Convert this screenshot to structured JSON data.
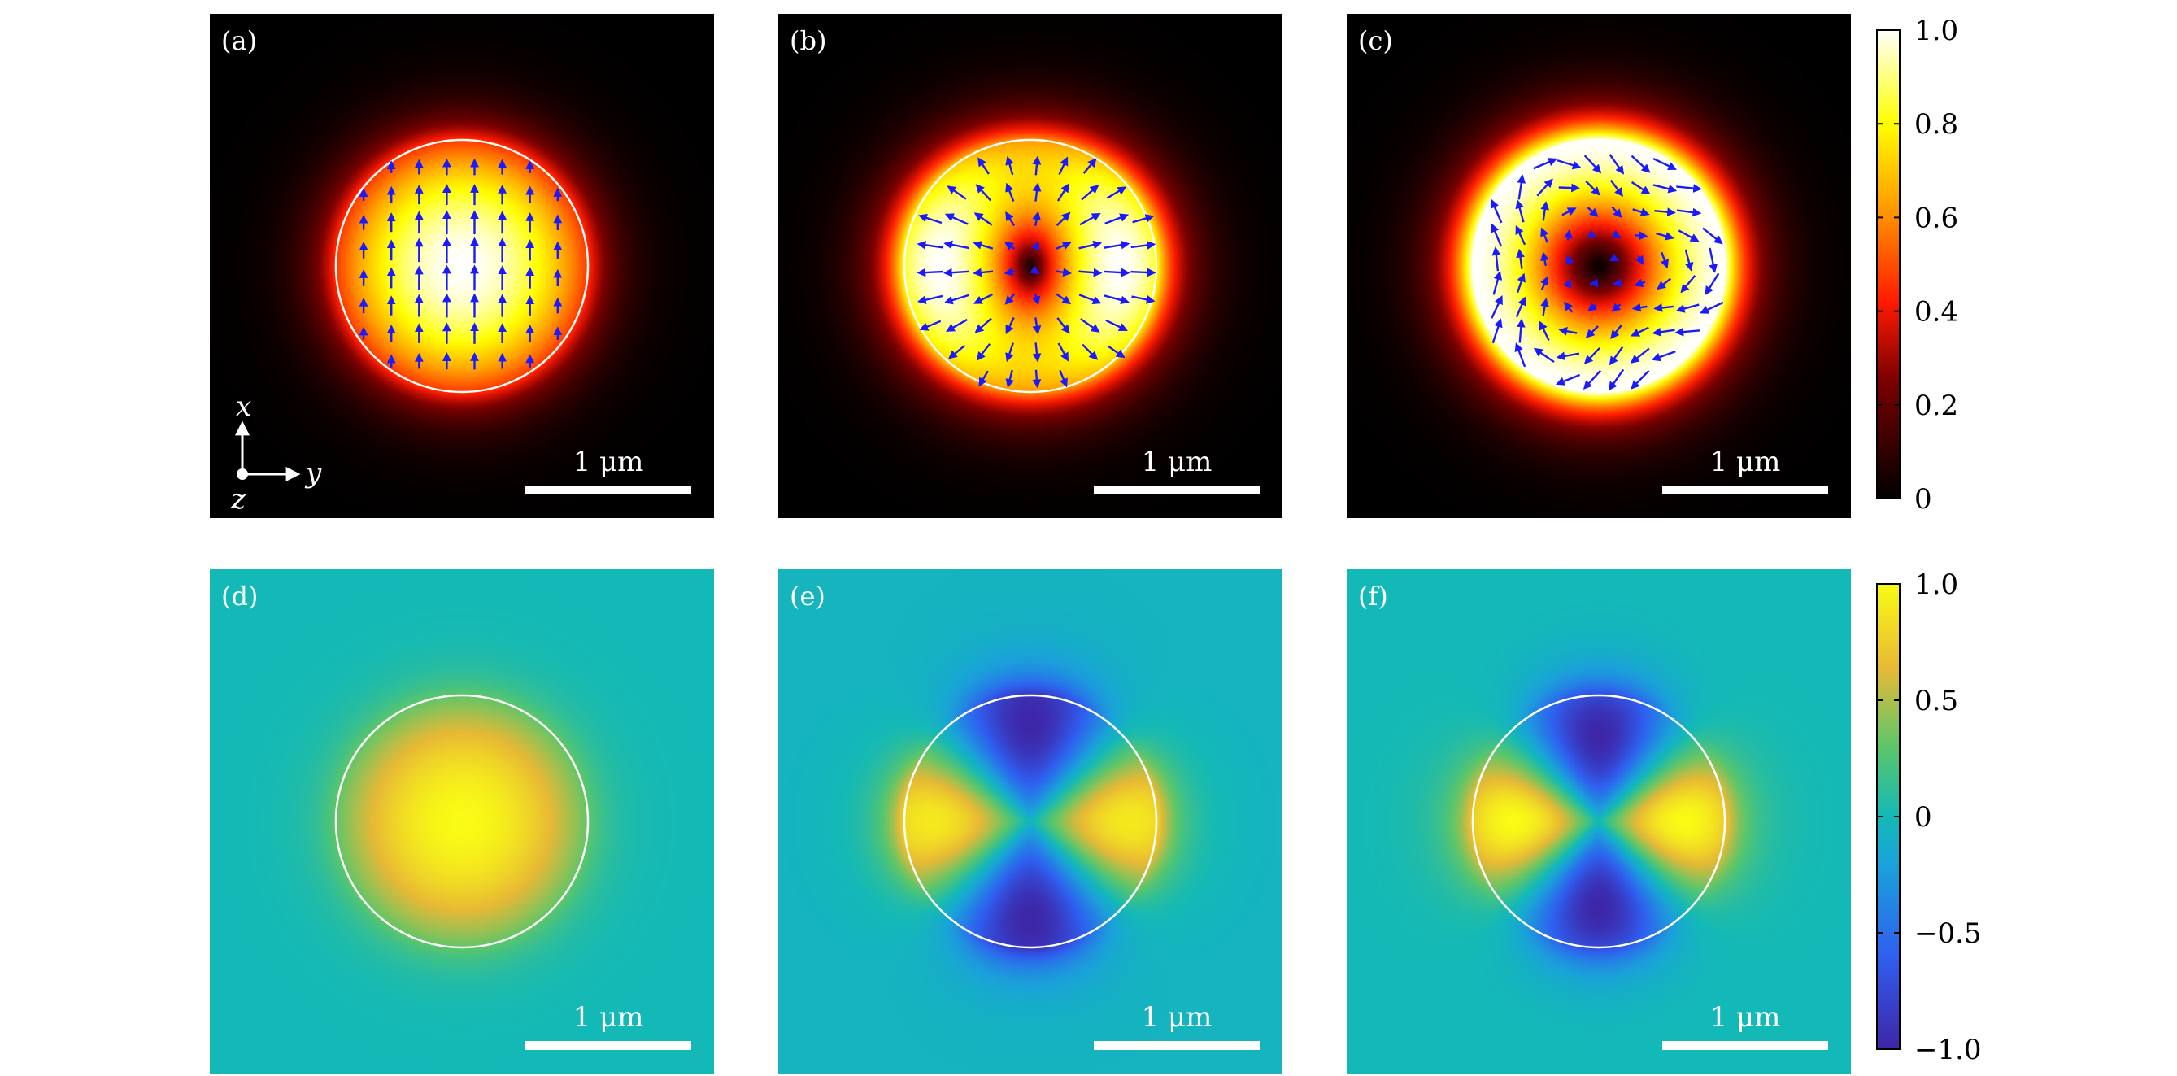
{
  "figure": {
    "panels": [
      {
        "label": "(a)",
        "kind": "intensity",
        "mode": "a",
        "scale_bar": "1 μm"
      },
      {
        "label": "(b)",
        "kind": "intensity",
        "mode": "b",
        "scale_bar": "1 μm"
      },
      {
        "label": "(c)",
        "kind": "intensity",
        "mode": "c",
        "scale_bar": "1 μm"
      },
      {
        "label": "(d)",
        "kind": "signed",
        "mode": "d",
        "scale_bar": "1 μm"
      },
      {
        "label": "(e)",
        "kind": "signed",
        "mode": "e",
        "scale_bar": "1 μm"
      },
      {
        "label": "(f)",
        "kind": "signed",
        "mode": "f",
        "scale_bar": "1 μm"
      }
    ],
    "axes_indicator": {
      "x": "x",
      "y": "y",
      "z": "z"
    },
    "colorbar_top": {
      "ticks": [
        "1.0",
        "0.8",
        "0.6",
        "0.4",
        "0.2",
        "0"
      ],
      "colormap": "hot"
    },
    "colorbar_bottom": {
      "ticks": [
        "1.0",
        "0.5",
        "0",
        "−0.5",
        "−1.0"
      ],
      "colormap": "parula"
    },
    "colors": {
      "arrow": "#1a1aff",
      "circle": "#ffffff",
      "signed_background": "#13b9b7"
    }
  }
}
